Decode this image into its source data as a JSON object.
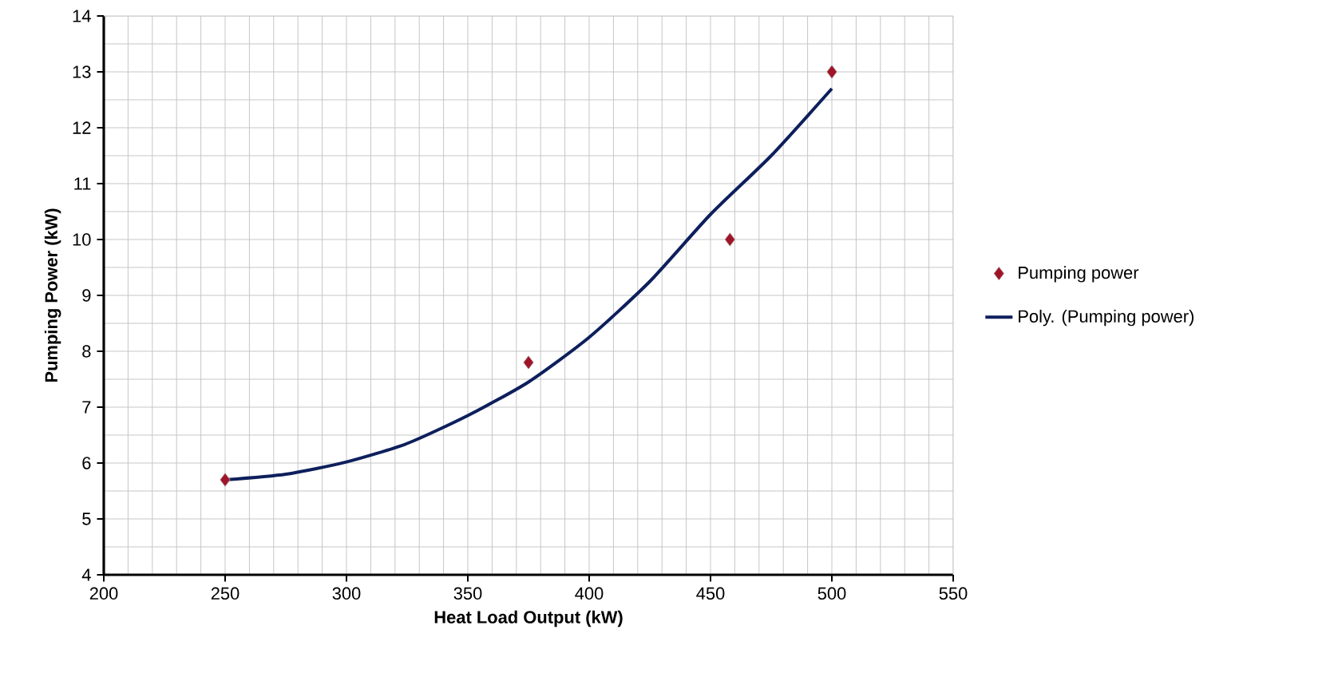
{
  "chart_data": {
    "type": "line",
    "xlabel": "Heat Load Output (kW)",
    "ylabel": "Pumping Power (kW)",
    "xlim": [
      200,
      550
    ],
    "ylim": [
      4,
      14
    ],
    "xticks": [
      200,
      250,
      300,
      350,
      400,
      450,
      500,
      550
    ],
    "yticks": [
      4,
      5,
      6,
      7,
      8,
      9,
      10,
      11,
      12,
      13,
      14
    ],
    "grid": true,
    "legend": "right",
    "series": [
      {
        "name": "Pumping power",
        "type": "scatter",
        "marker": "diamond",
        "color": "#a01428",
        "x": [
          250,
          375,
          458,
          500
        ],
        "values": [
          5.7,
          7.8,
          10.0,
          13.0
        ]
      },
      {
        "name": "Poly. (Pumping power)",
        "marker": "none",
        "line_style": "solid",
        "color": "#0d1f5c",
        "x": [
          250,
          275,
          300,
          325,
          350,
          375,
          400,
          425,
          450,
          475,
          500
        ],
        "values": [
          5.7,
          5.8,
          6.02,
          6.35,
          6.85,
          7.45,
          8.25,
          9.25,
          10.45,
          11.5,
          12.7
        ]
      }
    ]
  }
}
